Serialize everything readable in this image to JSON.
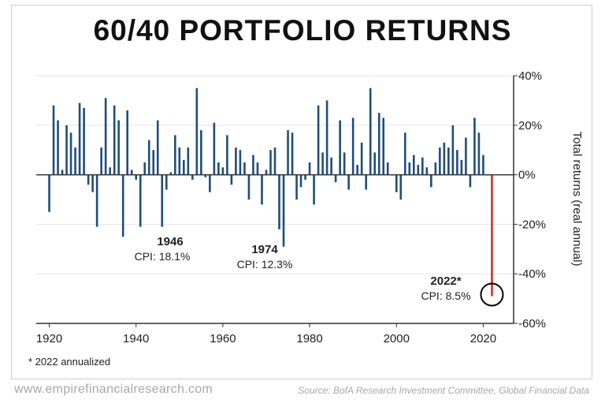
{
  "footnote": "* 2022 annualized",
  "website": "www.empirefinancialresearch.com",
  "source": "Source: BofA Research Investment Committee, Global Financial Data",
  "colors": {
    "bar": "#1f4e79",
    "highlight_bar": "#d32f2f",
    "grid": "#e6e6e6",
    "axis": "#333333"
  },
  "chart_data": {
    "type": "bar",
    "title": "60/40 PORTFOLIO RETURNS",
    "ylabel": "Total returns (real annual)",
    "xlabel": "",
    "ylim": [
      -60,
      40
    ],
    "xlim": [
      1917,
      2027
    ],
    "y_ticks": [
      -60,
      -40,
      -20,
      0,
      20,
      40
    ],
    "y_tick_labels": [
      "-60%",
      "-40%",
      "-20%",
      "0%",
      "20%",
      "40%"
    ],
    "x_ticks": [
      1920,
      1940,
      1960,
      1980,
      2000,
      2020
    ],
    "x_tick_labels": [
      "1920",
      "1940",
      "1960",
      "1980",
      "2000",
      "2020"
    ],
    "grid": "horizontal",
    "x": [
      1920,
      1921,
      1922,
      1923,
      1924,
      1925,
      1926,
      1927,
      1928,
      1929,
      1930,
      1931,
      1932,
      1933,
      1934,
      1935,
      1936,
      1937,
      1938,
      1939,
      1940,
      1941,
      1942,
      1943,
      1944,
      1945,
      1946,
      1947,
      1948,
      1949,
      1950,
      1951,
      1952,
      1953,
      1954,
      1955,
      1956,
      1957,
      1958,
      1959,
      1960,
      1961,
      1962,
      1963,
      1964,
      1965,
      1966,
      1967,
      1968,
      1969,
      1970,
      1971,
      1972,
      1973,
      1974,
      1975,
      1976,
      1977,
      1978,
      1979,
      1980,
      1981,
      1982,
      1983,
      1984,
      1985,
      1986,
      1987,
      1988,
      1989,
      1990,
      1991,
      1992,
      1993,
      1994,
      1995,
      1996,
      1997,
      1998,
      1999,
      2000,
      2001,
      2002,
      2003,
      2004,
      2005,
      2006,
      2007,
      2008,
      2009,
      2010,
      2011,
      2012,
      2013,
      2014,
      2015,
      2016,
      2017,
      2018,
      2019,
      2020,
      2021,
      2022
    ],
    "values": [
      -15,
      28,
      22,
      2,
      20,
      17,
      11,
      29,
      27,
      -4,
      -7,
      -21,
      11,
      31,
      3,
      28,
      22,
      -25,
      26,
      2,
      -2,
      -21,
      5,
      14,
      10,
      22,
      -21,
      -6,
      1,
      16,
      11,
      6,
      11,
      -2,
      35,
      18,
      -1,
      -7,
      21,
      5,
      3,
      16,
      -4,
      11,
      10,
      5,
      -10,
      8,
      5,
      -12,
      2,
      10,
      11,
      -22,
      -29,
      18,
      17,
      -10,
      -5,
      -2,
      5,
      -12,
      28,
      9,
      30,
      7,
      -3,
      22,
      9,
      -6,
      23,
      4,
      13,
      -6,
      35,
      9,
      25,
      23,
      5,
      0,
      -7,
      -10,
      17,
      5,
      8,
      4,
      7,
      3,
      -5,
      5,
      11,
      13,
      11,
      20,
      10,
      6,
      15,
      -5,
      23,
      17,
      8,
      0,
      -49
    ],
    "highlight": {
      "year": 2022,
      "value": -49
    },
    "annotations": [
      {
        "year_label": "1946",
        "cpi_label": "CPI: 18.1%"
      },
      {
        "year_label": "1974",
        "cpi_label": "CPI: 12.3%"
      },
      {
        "year_label": "2022*",
        "cpi_label": "CPI: 8.5%"
      }
    ]
  }
}
